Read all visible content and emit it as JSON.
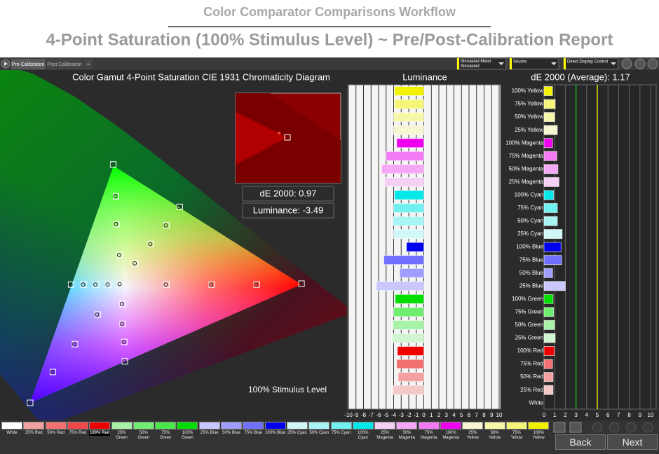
{
  "header": {
    "title": "Color Comparator Comparisons Workflow",
    "subtitle": "4-Point Saturation (100% Stimulus Level) ~ Pre/Post-Calibration Report"
  },
  "tabs": [
    "Pre-Calibration",
    "Post Calibration",
    "+"
  ],
  "dropdowns": [
    {
      "line1": "Simulated Meter",
      "line2": "Simulated"
    },
    {
      "line1": "Source"
    },
    {
      "line1": "Direct Display Control"
    }
  ],
  "chart_data": [
    {
      "type": "scatter",
      "title": "Color Gamut 4-Point Saturation CIE 1931 Chromaticity Diagram",
      "x": [
        0.3127,
        0.396,
        0.478,
        0.559,
        0.64,
        0.312,
        0.306,
        0.305,
        0.3,
        0.272,
        0.231,
        0.191,
        0.15,
        0.291,
        0.269,
        0.247,
        0.224,
        0.317,
        0.317,
        0.32,
        0.321,
        0.34,
        0.368,
        0.396,
        0.42
      ],
      "y": [
        0.329,
        0.328,
        0.328,
        0.328,
        0.33,
        0.395,
        0.465,
        0.528,
        0.6,
        0.26,
        0.193,
        0.13,
        0.06,
        0.328,
        0.328,
        0.328,
        0.328,
        0.284,
        0.239,
        0.198,
        0.154,
        0.376,
        0.42,
        0.462,
        0.504
      ],
      "annotations": [
        "dE 2000: 0.97",
        "Luminance: -3.49",
        "100% Stimulus Level"
      ]
    },
    {
      "type": "bar",
      "orientation": "horizontal",
      "title": "Luminance",
      "values": [
        -3.9,
        -3.9,
        -4.0,
        -4.0,
        -3.6,
        -5.0,
        -5.6,
        -5.2,
        -3.9,
        -4.0,
        -4.1,
        -4.0,
        -2.3,
        -5.3,
        -3.2,
        -6.3,
        -3.8,
        -4.0,
        -4.1,
        -4.2,
        -3.5,
        -3.6,
        -3.4,
        -4.1,
        null
      ],
      "colors": [
        "#f2f200",
        "#f5f57a",
        "#f6f6a8",
        "#f6f6d0",
        "#ee00ee",
        "#f27af2",
        "#f5a8f5",
        "#f5d0f5",
        "#00e8e8",
        "#70f0f0",
        "#a8f4f4",
        "#d0f8f8",
        "#0000ee",
        "#7070ff",
        "#9e9eff",
        "#c8c8ff",
        "#00dd00",
        "#70ee70",
        "#a8f2a8",
        "#d0f5d0",
        "#ee0000",
        "#f27070",
        "#f5a0a0",
        "#f5c8c8",
        "#ffffff"
      ],
      "xlim": [
        -10,
        10
      ],
      "xticks": [
        -10,
        -9,
        -8,
        -7,
        -6,
        -5,
        -4,
        -3,
        -2,
        -1,
        0,
        1,
        2,
        3,
        4,
        5,
        6,
        7,
        8,
        9,
        10
      ],
      "grid": true
    },
    {
      "type": "bar",
      "orientation": "horizontal",
      "title": "dE 2000 (Average): 1.17",
      "categories": [
        "100% Yellow",
        "75% Yellow",
        "50% Yellow",
        "25% Yellow",
        "100% Magenta",
        "75% Magenta",
        "50% Magenta",
        "25% Magenta",
        "100% Cyan",
        "75% Cyan",
        "50% Cyan",
        "25% Cyan",
        "100% Blue",
        "75% Blue",
        "50% Blue",
        "25% Blue",
        "100% Green",
        "75% Green",
        "50% Green",
        "25% Green",
        "100% Red",
        "75% Red",
        "50% Red",
        "25% Red",
        "White"
      ],
      "values": [
        0.8,
        1.05,
        1.0,
        1.25,
        0.8,
        1.2,
        1.3,
        1.4,
        0.9,
        1.25,
        1.25,
        1.7,
        1.6,
        1.65,
        0.8,
        2.0,
        0.85,
        0.9,
        1.0,
        1.05,
        0.97,
        0.8,
        0.85,
        0.85,
        null
      ],
      "colors": [
        "#f2f200",
        "#f5f57a",
        "#f6f6a8",
        "#f6f6d0",
        "#ee00ee",
        "#f27af2",
        "#f5a8f5",
        "#f5d0f5",
        "#00e8e8",
        "#70f0f0",
        "#a8f4f4",
        "#d0f8f8",
        "#0000ee",
        "#7070ff",
        "#9e9eff",
        "#c8c8ff",
        "#00dd00",
        "#70ee70",
        "#a8f2a8",
        "#d0f5d0",
        "#ee0000",
        "#f27070",
        "#f5a0a0",
        "#f5c8c8",
        "#ffffff"
      ],
      "xlim": [
        0,
        10
      ],
      "xticks": [
        0,
        1,
        2,
        3,
        4,
        5,
        6,
        7,
        8,
        9,
        10
      ],
      "grid": true,
      "reference_lines": [
        {
          "value": 3,
          "color": "#22aa22"
        },
        {
          "value": 5,
          "color": "#e0e000"
        }
      ]
    }
  ],
  "swatches": [
    {
      "label": "White",
      "color": "#ffffff"
    },
    {
      "label": "25% Red",
      "color": "#f5a0a0"
    },
    {
      "label": "50% Red",
      "color": "#f27070"
    },
    {
      "label": "75% Red",
      "color": "#f04848"
    },
    {
      "label": "100% Red",
      "color": "#ee0000"
    },
    {
      "label": "25% Green",
      "color": "#a8f2a8"
    },
    {
      "label": "50% Green",
      "color": "#70ee70"
    },
    {
      "label": "75% Green",
      "color": "#48e848"
    },
    {
      "label": "100% Green",
      "color": "#00dd00"
    },
    {
      "label": "25% Blue",
      "color": "#c8c8ff"
    },
    {
      "label": "50% Blue",
      "color": "#9e9eff"
    },
    {
      "label": "75% Blue",
      "color": "#7070ff"
    },
    {
      "label": "100% Blue",
      "color": "#0000ee"
    },
    {
      "label": "25% Cyan",
      "color": "#d0f8f8"
    },
    {
      "label": "50% Cyan",
      "color": "#a8f4f4"
    },
    {
      "label": "75% Cyan",
      "color": "#70f0f0"
    },
    {
      "label": "100% Cyan",
      "color": "#00e8e8"
    },
    {
      "label": "25% Magenta",
      "color": "#f5d0f5"
    },
    {
      "label": "50% Magenta",
      "color": "#f5a8f5"
    },
    {
      "label": "75% Magenta",
      "color": "#f27af2"
    },
    {
      "label": "100% Magenta",
      "color": "#ee00ee"
    },
    {
      "label": "25% Yellow",
      "color": "#f6f6d0"
    },
    {
      "label": "50% Yellow",
      "color": "#f6f6a8"
    },
    {
      "label": "75% Yellow",
      "color": "#f5f57a"
    },
    {
      "label": "100% Yellow",
      "color": "#f2f200"
    }
  ],
  "selected_swatch": 4,
  "buttons": {
    "back": "Back",
    "next": "Next"
  }
}
